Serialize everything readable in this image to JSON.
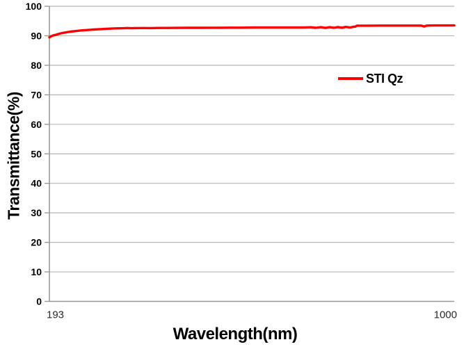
{
  "chart_data": {
    "type": "line",
    "title": "",
    "xlabel": "Wavelength(nm)",
    "ylabel": "Transmittance(%)",
    "xlim": [
      193,
      1000
    ],
    "ylim": [
      0,
      100
    ],
    "xticks": [
      193,
      1000
    ],
    "xtick_labels": [
      "193",
      "1000"
    ],
    "yticks": [
      0,
      10,
      20,
      30,
      40,
      50,
      60,
      70,
      80,
      90,
      100
    ],
    "grid": "horizontal",
    "legend_position": "inside-upper-right",
    "colors": {
      "series_red": "#FF0000",
      "gridline": "#b5b5b5",
      "axis": "#9a9a9a",
      "ytick_text": "#000000",
      "xtick_text": "#262626"
    },
    "series": [
      {
        "name": "STI Qz",
        "color": "#FF0000",
        "x": [
          193,
          196,
          200,
          205,
          211,
          218,
          226,
          235,
          245,
          256,
          268,
          281,
          295,
          310,
          326,
          341,
          348,
          356,
          365,
          380,
          395,
          412,
          430,
          450,
          470,
          490,
          510,
          530,
          552,
          575,
          600,
          625,
          650,
          675,
          700,
          714,
          724,
          734,
          743,
          752,
          760,
          768,
          776,
          784,
          792,
          799,
          803,
          806,
          815,
          830,
          850,
          875,
          900,
          920,
          934,
          940,
          945,
          960,
          980,
          1000
        ],
        "y": [
          89.5,
          89.8,
          90.05,
          90.3,
          90.6,
          90.9,
          91.15,
          91.4,
          91.6,
          91.8,
          91.95,
          92.1,
          92.25,
          92.4,
          92.5,
          92.55,
          92.62,
          92.55,
          92.6,
          92.63,
          92.6,
          92.65,
          92.65,
          92.68,
          92.7,
          92.7,
          92.72,
          92.72,
          92.75,
          92.75,
          92.78,
          92.8,
          92.8,
          92.8,
          92.78,
          92.88,
          92.7,
          92.9,
          92.65,
          92.9,
          92.7,
          92.95,
          92.73,
          93.0,
          92.8,
          93.05,
          93.1,
          93.42,
          93.42,
          93.43,
          93.45,
          93.45,
          93.45,
          93.45,
          93.45,
          93.15,
          93.45,
          93.5,
          93.5,
          93.5
        ]
      }
    ]
  }
}
